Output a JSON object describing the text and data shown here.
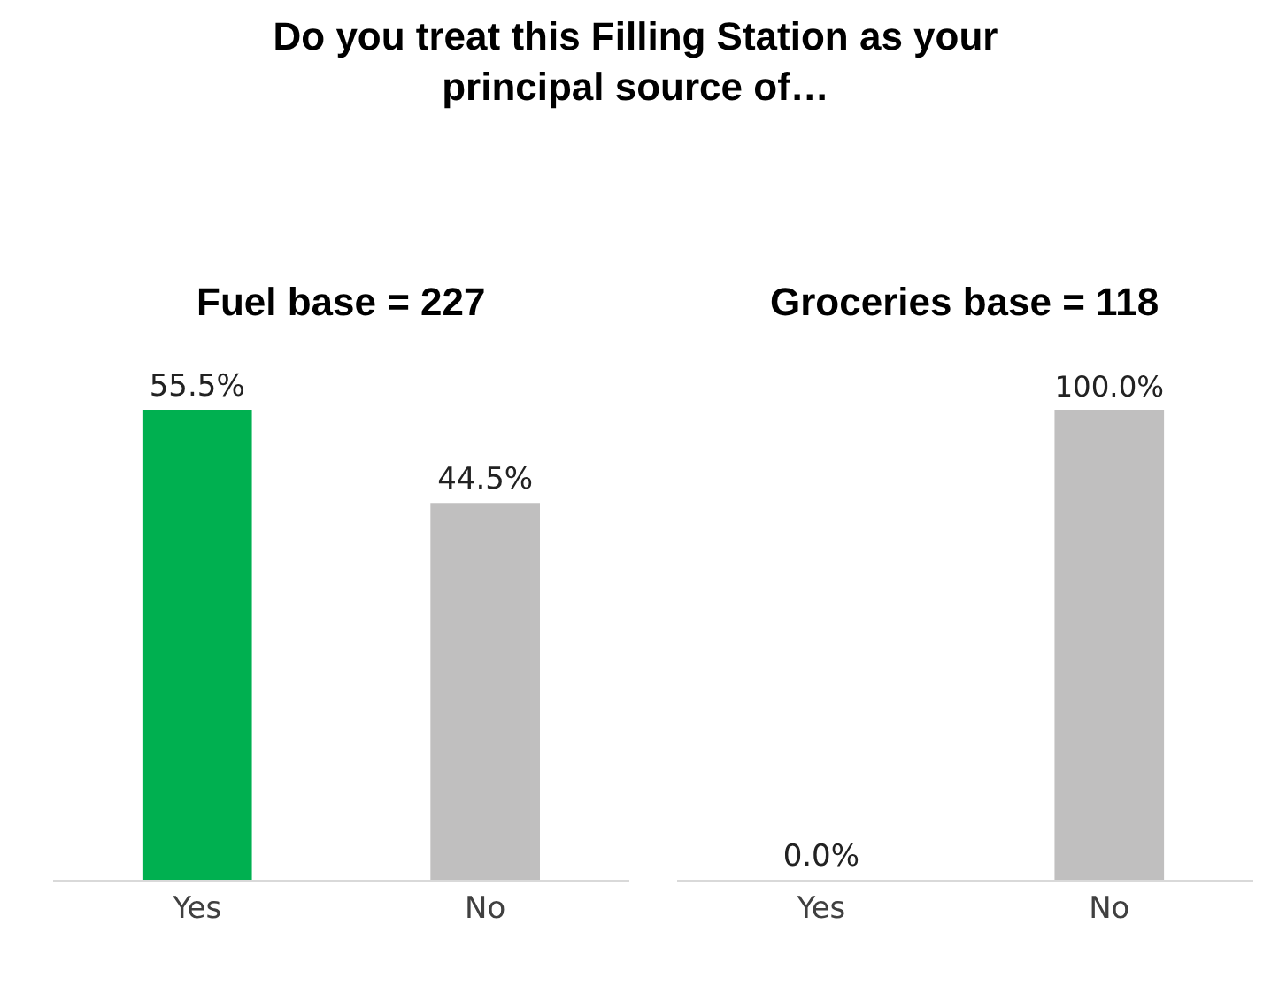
{
  "chart_data": [
    {
      "type": "bar",
      "title": "Do you treat this Filling Station as your principal source of…",
      "subtitle": "Fuel base = 227",
      "categories": [
        "Yes",
        "No"
      ],
      "values": [
        55.5,
        44.5
      ],
      "colors": [
        "#00b050",
        "#c0bfbf"
      ],
      "value_labels": [
        "55.5%",
        "44.5%"
      ],
      "legend": false,
      "tick_labels": "x"
    },
    {
      "type": "bar",
      "subtitle": "Groceries base = 118",
      "categories": [
        "Yes",
        "No"
      ],
      "values": [
        0.0,
        100.0
      ],
      "colors": [
        "#c0bfbf",
        "#c0bfbf"
      ],
      "value_labels": [
        "0.0%",
        "100.0%"
      ],
      "legend": false,
      "tick_labels": "x"
    }
  ]
}
